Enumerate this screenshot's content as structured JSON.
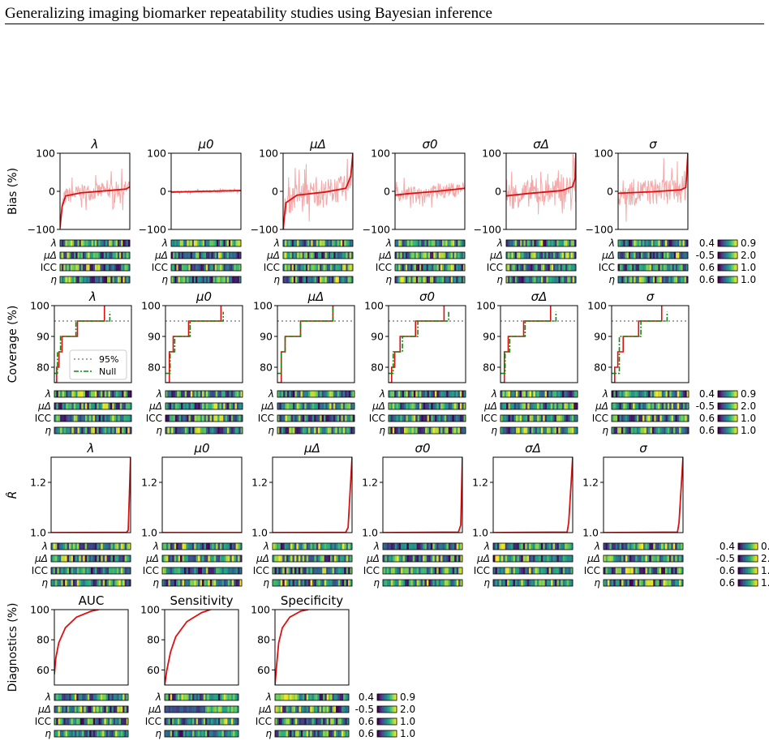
{
  "page": {
    "header": "Generalizing imaging biomarker repeatability studies using Bayesian inference"
  },
  "colors": {
    "estimate": "#dd1111",
    "faint": "#f4a8a8",
    "null_line": "#118811",
    "ref_line": "#888888",
    "viridis": [
      "#440154",
      "#414487",
      "#2a788e",
      "#22a884",
      "#7ad151",
      "#fde725"
    ]
  },
  "strip_labels": [
    "λ",
    "μΔ",
    "ICC",
    "η"
  ],
  "colorbars": [
    {
      "min": "0.4",
      "max": "0.9"
    },
    {
      "min": "-0.5",
      "max": "2.0"
    },
    {
      "min": "0.6",
      "max": "1.0"
    },
    {
      "min": "0.6",
      "max": "1.0"
    }
  ],
  "params": [
    "λ",
    "μ0",
    "μΔ",
    "σ0",
    "σΔ",
    "σ"
  ],
  "rows": [
    {
      "id": "bias",
      "ylabel": "Bias (%)",
      "yrange": [
        -100,
        100
      ],
      "yticks": [
        "100",
        "0",
        "−100"
      ],
      "ytick_values": [
        100,
        0,
        -100
      ],
      "panels": [
        {
          "title": "λ",
          "curve": [
            [
              0,
              -95
            ],
            [
              0.03,
              -40
            ],
            [
              0.08,
              -12
            ],
            [
              0.3,
              -4
            ],
            [
              0.7,
              2
            ],
            [
              0.95,
              6
            ],
            [
              1,
              12
            ]
          ]
        },
        {
          "title": "μ0",
          "curve": [
            [
              0,
              -2
            ],
            [
              0.5,
              0
            ],
            [
              1,
              2
            ]
          ]
        },
        {
          "title": "μΔ",
          "curve": [
            [
              0,
              -100
            ],
            [
              0.04,
              -30
            ],
            [
              0.2,
              -10
            ],
            [
              0.6,
              -2
            ],
            [
              0.9,
              8
            ],
            [
              0.97,
              40
            ],
            [
              1,
              100
            ]
          ]
        },
        {
          "title": "σ0",
          "curve": [
            [
              0,
              -10
            ],
            [
              0.2,
              -6
            ],
            [
              0.6,
              0
            ],
            [
              1,
              8
            ]
          ]
        },
        {
          "title": "σΔ",
          "curve": [
            [
              0,
              -12
            ],
            [
              0.3,
              -6
            ],
            [
              0.8,
              2
            ],
            [
              0.95,
              12
            ],
            [
              0.99,
              35
            ],
            [
              1,
              100
            ]
          ]
        },
        {
          "title": "σ",
          "curve": [
            [
              0,
              -5
            ],
            [
              0.5,
              -1
            ],
            [
              0.9,
              4
            ],
            [
              0.97,
              10
            ],
            [
              1,
              100
            ]
          ]
        }
      ]
    },
    {
      "id": "coverage",
      "ylabel": "Coverage (%)",
      "yrange": [
        75,
        100
      ],
      "yticks": [
        "100",
        "90",
        "80"
      ],
      "ytick_values": [
        100,
        90,
        80
      ],
      "reference": 95,
      "legend": {
        "ref_label": "95%",
        "null_label": "Null"
      },
      "panels": [
        {
          "title": "λ",
          "steps": [
            [
              0,
              75
            ],
            [
              0.03,
              80
            ],
            [
              0.06,
              85
            ],
            [
              0.1,
              90
            ],
            [
              0.3,
              95
            ],
            [
              0.65,
              100
            ]
          ],
          "null_steps": [
            [
              0,
              78
            ],
            [
              0.04,
              85
            ],
            [
              0.08,
              90
            ],
            [
              0.28,
              95
            ],
            [
              0.72,
              98
            ]
          ]
        },
        {
          "title": "μ0",
          "steps": [
            [
              0,
              75
            ],
            [
              0.05,
              85
            ],
            [
              0.1,
              90
            ],
            [
              0.3,
              95
            ],
            [
              0.72,
              100
            ]
          ],
          "null_steps": [
            [
              0,
              78
            ],
            [
              0.06,
              85
            ],
            [
              0.12,
              90
            ],
            [
              0.32,
              95
            ],
            [
              0.75,
              98
            ]
          ]
        },
        {
          "title": "μΔ",
          "steps": [
            [
              0,
              75
            ],
            [
              0.05,
              85
            ],
            [
              0.1,
              90
            ],
            [
              0.3,
              95
            ],
            [
              0.72,
              100
            ]
          ],
          "null_steps": [
            [
              0,
              78
            ],
            [
              0.05,
              85
            ],
            [
              0.1,
              90
            ],
            [
              0.3,
              95
            ],
            [
              0.72,
              100
            ]
          ]
        },
        {
          "title": "σ0",
          "steps": [
            [
              0,
              75
            ],
            [
              0.04,
              80
            ],
            [
              0.08,
              85
            ],
            [
              0.15,
              90
            ],
            [
              0.35,
              95
            ],
            [
              0.72,
              100
            ]
          ],
          "null_steps": [
            [
              0,
              78
            ],
            [
              0.06,
              85
            ],
            [
              0.18,
              90
            ],
            [
              0.38,
              95
            ],
            [
              0.78,
              98
            ]
          ]
        },
        {
          "title": "σΔ",
          "steps": [
            [
              0,
              75
            ],
            [
              0.05,
              85
            ],
            [
              0.1,
              90
            ],
            [
              0.3,
              95
            ],
            [
              0.65,
              100
            ]
          ],
          "null_steps": [
            [
              0,
              78
            ],
            [
              0.06,
              85
            ],
            [
              0.12,
              90
            ],
            [
              0.32,
              95
            ],
            [
              0.72,
              98
            ]
          ]
        },
        {
          "title": "σ",
          "steps": [
            [
              0,
              75
            ],
            [
              0.04,
              80
            ],
            [
              0.08,
              85
            ],
            [
              0.15,
              90
            ],
            [
              0.35,
              95
            ],
            [
              0.65,
              100
            ]
          ],
          "null_steps": [
            [
              0,
              78
            ],
            [
              0.1,
              90
            ],
            [
              0.38,
              95
            ],
            [
              0.72,
              98
            ]
          ]
        }
      ]
    },
    {
      "id": "rhat",
      "ylabel": "R̂",
      "yrange": [
        1.0,
        1.3
      ],
      "yticks": [
        "1.2",
        "1.0"
      ],
      "ytick_values": [
        1.2,
        1.0
      ],
      "panels": [
        {
          "title": "λ",
          "curve": [
            [
              0,
              1.0
            ],
            [
              0.95,
              1.001
            ],
            [
              0.97,
              1.01
            ],
            [
              1,
              1.3
            ]
          ]
        },
        {
          "title": "μ0",
          "curve": [
            [
              0,
              1.0
            ],
            [
              1,
              1.0
            ]
          ]
        },
        {
          "title": "μΔ",
          "curve": [
            [
              0,
              1.0
            ],
            [
              0.92,
              1.001
            ],
            [
              0.95,
              1.02
            ],
            [
              1,
              1.3
            ]
          ]
        },
        {
          "title": "σ0",
          "curve": [
            [
              0,
              1.0
            ],
            [
              0.95,
              1.002
            ],
            [
              0.98,
              1.03
            ],
            [
              1,
              1.3
            ]
          ]
        },
        {
          "title": "σΔ",
          "curve": [
            [
              0,
              1.0
            ],
            [
              0.93,
              1.002
            ],
            [
              0.95,
              1.04
            ],
            [
              1,
              1.3
            ]
          ]
        },
        {
          "title": "σ",
          "curve": [
            [
              0,
              1.0
            ],
            [
              0.93,
              1.002
            ],
            [
              0.95,
              1.04
            ],
            [
              1,
              1.3
            ]
          ]
        }
      ]
    },
    {
      "id": "diagnostics",
      "ylabel": "Diagnostics (%)",
      "yrange": [
        50,
        100
      ],
      "yticks": [
        "100",
        "80",
        "60"
      ],
      "ytick_values": [
        100,
        80,
        60
      ],
      "panels": [
        {
          "title": "AUC",
          "curve": [
            [
              0,
              57
            ],
            [
              0.02,
              68
            ],
            [
              0.06,
              78
            ],
            [
              0.15,
              88
            ],
            [
              0.3,
              95
            ],
            [
              0.5,
              99
            ],
            [
              0.6,
              100
            ]
          ]
        },
        {
          "title": "Sensitivity",
          "curve": [
            [
              0,
              50
            ],
            [
              0.03,
              60
            ],
            [
              0.08,
              72
            ],
            [
              0.15,
              82
            ],
            [
              0.3,
              92
            ],
            [
              0.5,
              98
            ],
            [
              0.62,
              100
            ]
          ]
        },
        {
          "title": "Specificity",
          "curve": [
            [
              0,
              50
            ],
            [
              0.02,
              62
            ],
            [
              0.05,
              78
            ],
            [
              0.1,
              88
            ],
            [
              0.2,
              95
            ],
            [
              0.35,
              99
            ],
            [
              0.45,
              100
            ]
          ]
        }
      ]
    }
  ]
}
